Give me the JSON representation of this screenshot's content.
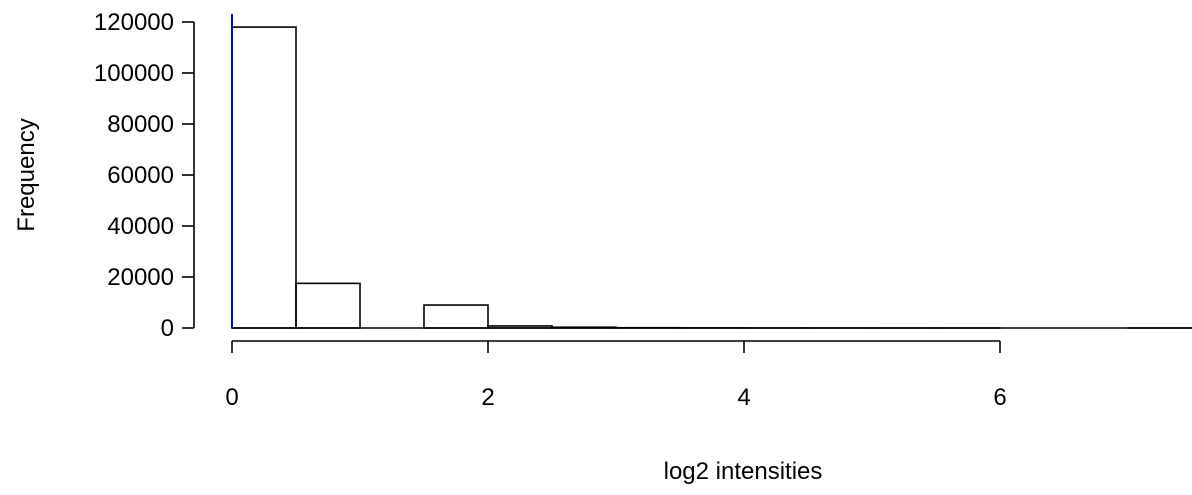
{
  "chart_data": {
    "type": "histogram",
    "title": "",
    "xlabel": "log2 intensities",
    "ylabel": "Frequency",
    "xlim": [
      0,
      7.5
    ],
    "ylim": [
      0,
      120000
    ],
    "x_ticks": [
      0,
      2,
      4,
      6
    ],
    "y_ticks": [
      0,
      20000,
      40000,
      60000,
      80000,
      100000,
      120000
    ],
    "bin_width": 0.5,
    "bins": [
      {
        "start": 0.0,
        "end": 0.5,
        "count": 118000
      },
      {
        "start": 0.5,
        "end": 1.0,
        "count": 17500
      },
      {
        "start": 1.0,
        "end": 1.5,
        "count": 0
      },
      {
        "start": 1.5,
        "end": 2.0,
        "count": 9000
      },
      {
        "start": 2.0,
        "end": 2.5,
        "count": 800
      },
      {
        "start": 2.5,
        "end": 3.0,
        "count": 300
      },
      {
        "start": 3.0,
        "end": 3.5,
        "count": 100
      },
      {
        "start": 3.5,
        "end": 4.0,
        "count": 50
      },
      {
        "start": 4.0,
        "end": 4.5,
        "count": 20
      },
      {
        "start": 4.5,
        "end": 5.0,
        "count": 10
      },
      {
        "start": 5.0,
        "end": 5.5,
        "count": 5
      },
      {
        "start": 5.5,
        "end": 6.0,
        "count": 2
      },
      {
        "start": 6.0,
        "end": 6.5,
        "count": 0
      },
      {
        "start": 6.5,
        "end": 7.0,
        "count": 0
      },
      {
        "start": 7.0,
        "end": 7.5,
        "count": 1
      }
    ],
    "reference_line": {
      "x": 0,
      "color": "#0000cc"
    },
    "grid": false,
    "legend": "none"
  }
}
